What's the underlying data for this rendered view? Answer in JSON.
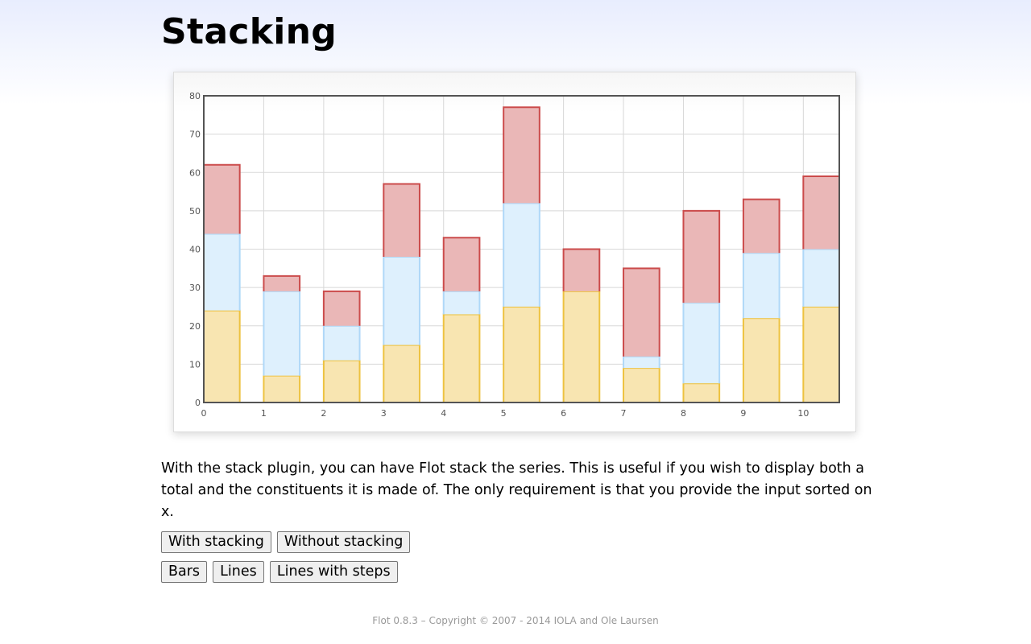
{
  "header": {
    "title": "Stacking"
  },
  "chart_data": {
    "type": "bar",
    "stacked": true,
    "x": [
      0,
      1,
      2,
      3,
      4,
      5,
      6,
      7,
      8,
      9,
      10
    ],
    "series": [
      {
        "values": [
          24,
          7,
          11,
          15,
          23,
          25,
          29,
          9,
          5,
          22,
          25
        ],
        "color": "#edc240",
        "fill": "#f8e5b1"
      },
      {
        "values": [
          20,
          22,
          9,
          23,
          6,
          27,
          0,
          3,
          21,
          17,
          15
        ],
        "color": "#afd8f8",
        "fill": "#def0fd"
      },
      {
        "values": [
          18,
          4,
          9,
          19,
          14,
          25,
          11,
          23,
          24,
          14,
          19
        ],
        "color": "#cb4b4b",
        "fill": "#eab7b7"
      }
    ],
    "bar_width": 0.6,
    "xlim": [
      0,
      10.6
    ],
    "ylim": [
      0,
      80
    ],
    "xticks": [
      "0",
      "1",
      "2",
      "3",
      "4",
      "5",
      "6",
      "7",
      "8",
      "9",
      "10"
    ],
    "yticks": [
      "0",
      "10",
      "20",
      "30",
      "40",
      "50",
      "60",
      "70",
      "80"
    ],
    "grid": true
  },
  "description": "With the stack plugin, you can have Flot stack the series. This is useful if you wish to display both a total and the constituents it is made of. The only requirement is that you provide the input sorted on x.",
  "buttons": {
    "with_stacking": "With stacking",
    "without_stacking": "Without stacking",
    "bars": "Bars",
    "lines": "Lines",
    "lines_steps": "Lines with steps"
  },
  "footer": {
    "text": "Flot 0.8.3 – Copyright © 2007 - 2014 IOLA and Ole Laursen"
  }
}
